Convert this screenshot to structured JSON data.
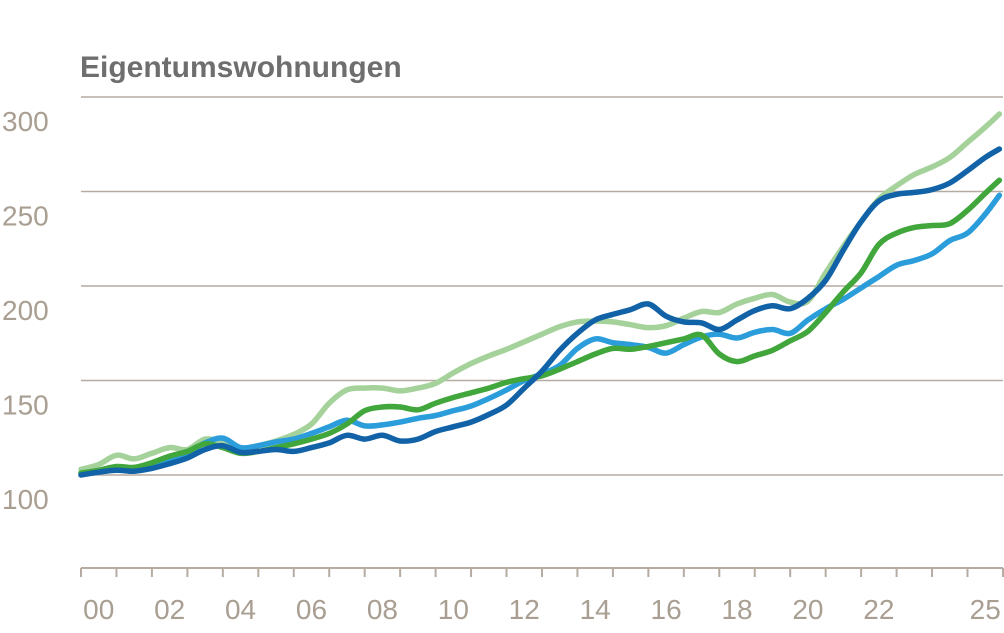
{
  "title": "Eigentumswohnungen",
  "colors": {
    "grid": "#b5aba0",
    "axis": "#b5aba0",
    "tick_label": "#a99e92",
    "title_text": "#6e6e6e",
    "background": "#ffffff"
  },
  "chart_data": {
    "type": "line",
    "title": "Eigentumswohnungen",
    "xlabel": "",
    "ylabel": "",
    "grid": "horizontal",
    "legend_position": "none",
    "ylim": [
      100,
      300
    ],
    "y_ticks": [
      300,
      250,
      200,
      150,
      100
    ],
    "x_year_range": [
      2000,
      2026
    ],
    "x_tick_every_years": 1,
    "x_labels": [
      {
        "text": "00",
        "year": 0
      },
      {
        "text": "02",
        "year": 2
      },
      {
        "text": "04",
        "year": 4
      },
      {
        "text": "06",
        "year": 6
      },
      {
        "text": "08",
        "year": 8
      },
      {
        "text": "10",
        "year": 10
      },
      {
        "text": "12",
        "year": 12
      },
      {
        "text": "14",
        "year": 14
      },
      {
        "text": "16",
        "year": 16
      },
      {
        "text": "18",
        "year": 18
      },
      {
        "text": "20",
        "year": 20
      },
      {
        "text": "22",
        "year": 22
      },
      {
        "text": "25",
        "year": 25
      }
    ],
    "x_years": [
      0,
      0.5,
      1,
      1.5,
      2,
      2.5,
      3,
      3.5,
      4,
      4.5,
      5,
      5.5,
      6,
      6.5,
      7,
      7.5,
      8,
      8.5,
      9,
      9.5,
      10,
      10.5,
      11,
      11.5,
      12,
      12.5,
      13,
      13.5,
      14,
      14.5,
      15,
      15.5,
      16,
      16.5,
      17,
      17.5,
      18,
      18.5,
      19,
      19.5,
      20,
      20.5,
      21,
      21.5,
      22,
      22.5,
      23,
      23.5,
      24,
      24.5,
      25,
      25.5,
      25.9
    ],
    "series": [
      {
        "name": "light-green",
        "color": "#a4d29a",
        "values": [
          103,
          105.5,
          110.5,
          108.5,
          111.5,
          114.5,
          113.5,
          119,
          117,
          113.5,
          115.5,
          118,
          121.5,
          127,
          138,
          145,
          146,
          146,
          144.5,
          146,
          148.5,
          154,
          159,
          163,
          166.5,
          170.5,
          174.5,
          178.5,
          181,
          181.5,
          181,
          179.5,
          178,
          179,
          183,
          186.5,
          186,
          190.5,
          193.5,
          195.5,
          191.5,
          192,
          207,
          221,
          234,
          246,
          253,
          259,
          263,
          268,
          276,
          284,
          291
        ]
      },
      {
        "name": "light-blue",
        "color": "#2b9ddb",
        "values": [
          101,
          102,
          103.5,
          103,
          105,
          108,
          111.5,
          117,
          119.5,
          114.5,
          115.5,
          117.5,
          119,
          122,
          125.5,
          129,
          126,
          126.5,
          128,
          130,
          131.5,
          134,
          136.5,
          140.5,
          145,
          150,
          153.5,
          158,
          167,
          172,
          170,
          169,
          167.5,
          164.5,
          169,
          173,
          174.5,
          172.5,
          175.5,
          177,
          175,
          182,
          188,
          193,
          199,
          205,
          211,
          213.5,
          217,
          224,
          228,
          238,
          248
        ]
      },
      {
        "name": "dark-green",
        "color": "#41a63b",
        "values": [
          101,
          102.5,
          104.5,
          104,
          106.5,
          110,
          112.5,
          116.5,
          114.5,
          111.5,
          112.5,
          114.5,
          116.5,
          119,
          122,
          127,
          134,
          136,
          136,
          134.5,
          138,
          141,
          143.5,
          146,
          149,
          151,
          152.5,
          156,
          160,
          164,
          167,
          166.5,
          168,
          170,
          172,
          174,
          164,
          160,
          163,
          166,
          171,
          176,
          186,
          197,
          207,
          222,
          228,
          231,
          232,
          233,
          240,
          249,
          256
        ]
      },
      {
        "name": "dark-blue",
        "color": "#1162a7",
        "values": [
          100,
          101.5,
          102.5,
          102,
          103.5,
          106,
          109,
          113.5,
          115.5,
          112,
          112.5,
          113.5,
          112.5,
          114.5,
          117,
          121,
          119,
          121,
          118,
          119,
          123,
          125.5,
          128,
          132,
          137,
          146,
          155,
          166,
          175,
          182,
          185,
          187.5,
          190.5,
          184,
          181,
          180.5,
          177,
          182,
          187,
          189.5,
          188,
          193.5,
          203,
          219,
          234,
          245,
          248.5,
          249.5,
          251,
          254.5,
          261,
          268,
          272.5
        ]
      }
    ]
  }
}
